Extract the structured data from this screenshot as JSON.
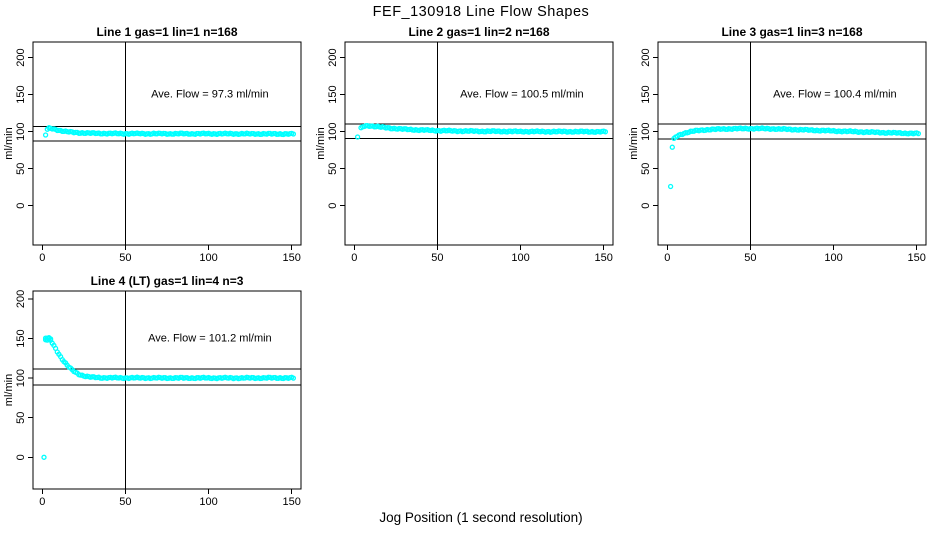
{
  "page": {
    "main_title": "FEF_130918  Line Flow Shapes",
    "x_axis_label": "Jog Position (1 second resolution)",
    "colors": {
      "point": "#00FFFF",
      "axis": "#000000",
      "background": "#FFFFFF"
    }
  },
  "chart_data": [
    {
      "type": "scatter",
      "title": "Line 1 gas=1 lin=1 n=168",
      "n": 168,
      "ave_flow": 97.3,
      "ave_flow_label": "Ave. Flow =  97.3  ml/min",
      "ylabel": "ml/min",
      "x_ticks": [
        0,
        50,
        100,
        150
      ],
      "y_ticks": [
        0,
        50,
        100,
        150,
        200
      ],
      "ref_h": [
        107.0,
        87.6
      ],
      "ref_v": 50,
      "outliers": [
        [
          2,
          95.5
        ]
      ],
      "band": [
        [
          3,
          103.2
        ],
        [
          4,
          104.4
        ],
        [
          5,
          104.3
        ],
        [
          6,
          103.9
        ],
        [
          8,
          102.9
        ],
        [
          10,
          101.9
        ],
        [
          12,
          100.9
        ],
        [
          15,
          99.9
        ],
        [
          18,
          99.2
        ],
        [
          20,
          98.8
        ],
        [
          25,
          98.2
        ],
        [
          30,
          97.8
        ],
        [
          40,
          97.5
        ],
        [
          50,
          97.4
        ],
        [
          60,
          97.3
        ],
        [
          80,
          97.2
        ],
        [
          100,
          97.2
        ],
        [
          120,
          97.1
        ],
        [
          135,
          97.0
        ],
        [
          151,
          96.9
        ]
      ]
    },
    {
      "type": "scatter",
      "title": "Line 2 gas=1 lin=2 n=168",
      "n": 168,
      "ave_flow": 100.5,
      "ave_flow_label": "Ave. Flow =  100.5  ml/min",
      "ylabel": "ml/min",
      "x_ticks": [
        0,
        50,
        100,
        150
      ],
      "y_ticks": [
        0,
        50,
        100,
        150,
        200
      ],
      "ref_h": [
        110.6,
        90.5
      ],
      "ref_v": 50,
      "outliers": [
        [
          2,
          92.8
        ]
      ],
      "band": [
        [
          4,
          104.5
        ],
        [
          5,
          106.3
        ],
        [
          6,
          107.3
        ],
        [
          7,
          107.8
        ],
        [
          8,
          108.0
        ],
        [
          10,
          107.8
        ],
        [
          12,
          107.2
        ],
        [
          15,
          106.4
        ],
        [
          18,
          105.6
        ],
        [
          20,
          105.1
        ],
        [
          25,
          104.1
        ],
        [
          30,
          103.3
        ],
        [
          35,
          102.7
        ],
        [
          40,
          102.2
        ],
        [
          50,
          101.5
        ],
        [
          60,
          101.0
        ],
        [
          70,
          100.7
        ],
        [
          80,
          100.5
        ],
        [
          100,
          100.2
        ],
        [
          120,
          100.1
        ],
        [
          135,
          100.0
        ],
        [
          151,
          99.9
        ]
      ]
    },
    {
      "type": "scatter",
      "title": "Line 3 gas=1 lin=3 n=168",
      "n": 168,
      "ave_flow": 100.4,
      "ave_flow_label": "Ave. Flow =  100.4  ml/min",
      "ylabel": "ml/min",
      "x_ticks": [
        0,
        50,
        100,
        150
      ],
      "y_ticks": [
        0,
        50,
        100,
        150,
        200
      ],
      "ref_h": [
        110.4,
        90.4
      ],
      "ref_v": 50,
      "outliers": [
        [
          2,
          26.0
        ],
        [
          3,
          79.0
        ]
      ],
      "band": [
        [
          4,
          90.0
        ],
        [
          5,
          92.5
        ],
        [
          6,
          94.0
        ],
        [
          8,
          96.2
        ],
        [
          10,
          97.8
        ],
        [
          12,
          99.0
        ],
        [
          15,
          100.4
        ],
        [
          18,
          101.4
        ],
        [
          20,
          101.9
        ],
        [
          25,
          102.8
        ],
        [
          30,
          103.3
        ],
        [
          35,
          103.7
        ],
        [
          40,
          103.9
        ],
        [
          45,
          104.1
        ],
        [
          50,
          104.2
        ],
        [
          55,
          104.2
        ],
        [
          60,
          104.0
        ],
        [
          70,
          103.4
        ],
        [
          80,
          102.6
        ],
        [
          90,
          101.8
        ],
        [
          100,
          101.0
        ],
        [
          110,
          100.2
        ],
        [
          120,
          99.4
        ],
        [
          130,
          98.7
        ],
        [
          140,
          98.1
        ],
        [
          151,
          97.5
        ]
      ]
    },
    {
      "type": "scatter",
      "title": "Line 4 (LT) gas=1 lin=4 n=3",
      "n": 3,
      "ave_flow": 101.2,
      "ave_flow_label": "Ave. Flow =  101.2  ml/min",
      "ylabel": "ml/min",
      "x_ticks": [
        0,
        50,
        100,
        150
      ],
      "y_ticks": [
        0,
        50,
        100,
        150,
        200
      ],
      "ref_h": [
        111.3,
        91.1
      ],
      "ref_v": 50,
      "outliers": [
        [
          1,
          0.0
        ],
        [
          2,
          150.5
        ],
        [
          3,
          148.0
        ],
        [
          4,
          151.0
        ],
        [
          5,
          149.5
        ]
      ],
      "band": [
        [
          2,
          148.5
        ],
        [
          3,
          150.3
        ],
        [
          4,
          149.6
        ],
        [
          5,
          147.5
        ],
        [
          6,
          144.5
        ],
        [
          7,
          141.0
        ],
        [
          8,
          137.5
        ],
        [
          9,
          133.8
        ],
        [
          10,
          130.3
        ],
        [
          11,
          127.0
        ],
        [
          12,
          124.0
        ],
        [
          13,
          121.2
        ],
        [
          14,
          118.6
        ],
        [
          15,
          116.2
        ],
        [
          16,
          114.0
        ],
        [
          17,
          112.0
        ],
        [
          18,
          110.3
        ],
        [
          19,
          108.7
        ],
        [
          20,
          107.3
        ],
        [
          22,
          105.1
        ],
        [
          24,
          103.5
        ],
        [
          26,
          102.4
        ],
        [
          28,
          101.6
        ],
        [
          30,
          101.1
        ],
        [
          35,
          100.6
        ],
        [
          40,
          100.4
        ],
        [
          50,
          100.3
        ],
        [
          60,
          100.3
        ],
        [
          80,
          100.2
        ],
        [
          100,
          100.2
        ],
        [
          120,
          100.2
        ],
        [
          135,
          100.3
        ],
        [
          151,
          100.2
        ]
      ]
    }
  ]
}
